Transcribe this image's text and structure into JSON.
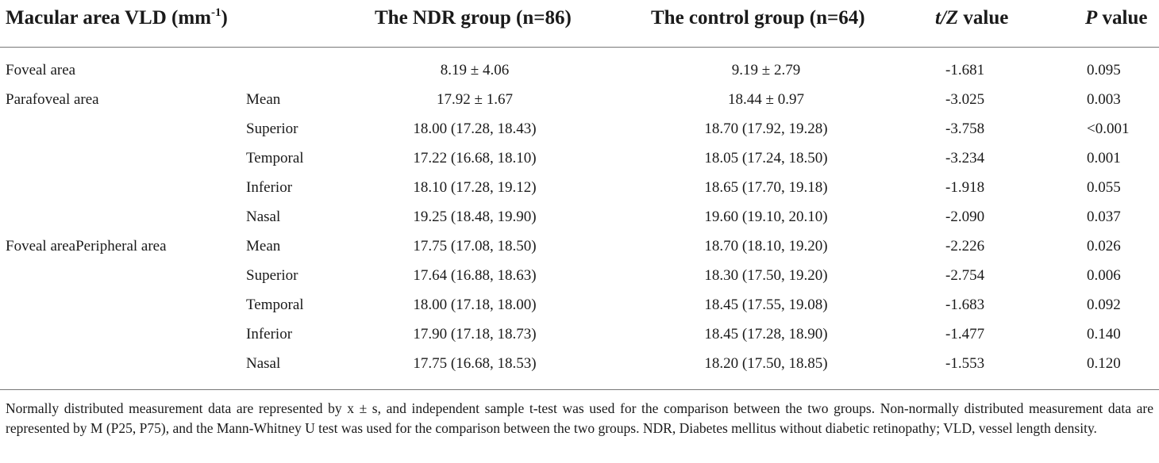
{
  "table": {
    "headers": {
      "col1_main": "Macular area VLD (mm",
      "col1_sup": "-1",
      "col1_close": ")",
      "ndr": "The NDR group (n=86)",
      "control": "The control group (n=64)",
      "tz_italic": "t/Z",
      "tz_rest": " value",
      "p_italic": "P",
      "p_rest": " value"
    },
    "rows": [
      {
        "area": "Foveal area",
        "sub": "",
        "ndr": "8.19 ± 4.06",
        "control": "9.19 ± 2.79",
        "tz": "-1.681",
        "p": "0.095"
      },
      {
        "area": "Parafoveal area",
        "sub": "Mean",
        "ndr": "17.92 ± 1.67",
        "control": "18.44 ± 0.97",
        "tz": "-3.025",
        "p": "0.003"
      },
      {
        "area": "",
        "sub": "Superior",
        "ndr": "18.00 (17.28, 18.43)",
        "control": "18.70 (17.92, 19.28)",
        "tz": "-3.758",
        "p": "<0.001"
      },
      {
        "area": "",
        "sub": "Temporal",
        "ndr": "17.22 (16.68, 18.10)",
        "control": "18.05 (17.24, 18.50)",
        "tz": "-3.234",
        "p": "0.001"
      },
      {
        "area": "",
        "sub": "Inferior",
        "ndr": "18.10 (17.28, 19.12)",
        "control": "18.65 (17.70, 19.18)",
        "tz": "-1.918",
        "p": "0.055"
      },
      {
        "area": "",
        "sub": "Nasal",
        "ndr": "19.25 (18.48, 19.90)",
        "control": "19.60 (19.10, 20.10)",
        "tz": "-2.090",
        "p": "0.037"
      },
      {
        "area": "Foveal areaPeripheral area",
        "sub": "Mean",
        "ndr": "17.75 (17.08, 18.50)",
        "control": "18.70 (18.10, 19.20)",
        "tz": "-2.226",
        "p": "0.026"
      },
      {
        "area": "",
        "sub": "Superior",
        "ndr": "17.64 (16.88, 18.63)",
        "control": "18.30 (17.50, 19.20)",
        "tz": "-2.754",
        "p": "0.006"
      },
      {
        "area": "",
        "sub": "Temporal",
        "ndr": "18.00 (17.18, 18.00)",
        "control": "18.45 (17.55, 19.08)",
        "tz": "-1.683",
        "p": "0.092"
      },
      {
        "area": "",
        "sub": "Inferior",
        "ndr": "17.90 (17.18, 18.73)",
        "control": "18.45 (17.28, 18.90)",
        "tz": "-1.477",
        "p": "0.140"
      },
      {
        "area": "",
        "sub": "Nasal",
        "ndr": "17.75 (16.68, 18.53)",
        "control": "18.20 (17.50, 18.85)",
        "tz": "-1.553",
        "p": "0.120"
      }
    ]
  },
  "footnote": "Normally distributed measurement data are represented by x ± s, and independent sample t-test was used for the comparison between the two groups. Non-normally distributed measurement data are represented by M (P25, P75), and the Mann-Whitney U test was used for the comparison between the two groups. NDR, Diabetes mellitus without diabetic retinopathy; VLD, vessel length density."
}
